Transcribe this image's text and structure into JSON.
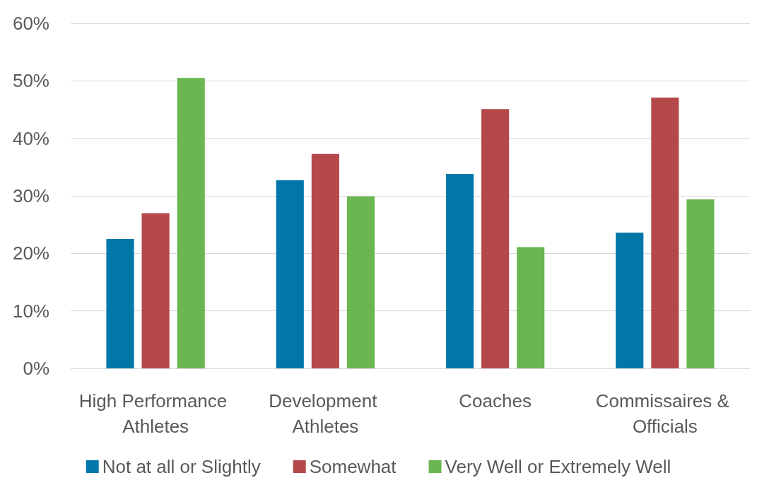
{
  "chart_data": {
    "type": "bar",
    "categories": [
      "High Performance Athletes",
      "Development Athletes",
      "Coaches",
      "Commissaires & Officials"
    ],
    "series": [
      {
        "name": "Not at all or Slightly",
        "color": "#0077a8",
        "values": [
          22.5,
          32.7,
          33.8,
          23.6
        ]
      },
      {
        "name": "Somewhat",
        "color": "#b5484a",
        "values": [
          27,
          37.3,
          45.1,
          47.1
        ]
      },
      {
        "name": "Very Well or Extremely Well",
        "color": "#6ab650",
        "values": [
          50.5,
          29.9,
          21.1,
          29.4
        ]
      }
    ],
    "ylim": [
      0,
      60
    ],
    "yticks": [
      {
        "value": 0,
        "label": "0%"
      },
      {
        "value": 10,
        "label": "10%"
      },
      {
        "value": 20,
        "label": "20%"
      },
      {
        "value": 30,
        "label": "30%"
      },
      {
        "value": 40,
        "label": "40%"
      },
      {
        "value": 50,
        "label": "50%"
      },
      {
        "value": 60,
        "label": "60%"
      }
    ],
    "grid": "y",
    "legend": "bottom"
  }
}
